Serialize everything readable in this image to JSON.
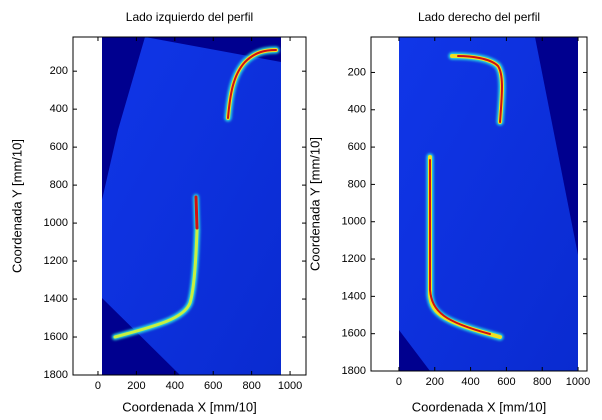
{
  "chart_data": [
    {
      "type": "image",
      "title": "Lado izquierdo del perfil",
      "xlabel": "Coordenada X [mm/10]",
      "ylabel": "Coordenada Y [mm/10]",
      "xlim": [
        -130,
        1083
      ],
      "ylim": [
        20,
        1800
      ],
      "yreverse": true,
      "xticks": [
        0,
        200,
        400,
        600,
        800,
        1000
      ],
      "yticks": [
        200,
        400,
        600,
        800,
        1000,
        1200,
        1400,
        1600,
        1800
      ]
    },
    {
      "type": "image",
      "title": "Lado derecho del perfil",
      "xlabel": "Coordenada X [mm/10]",
      "ylabel": "Coordenada Y [mm/10]",
      "xlim": [
        -156,
        1050
      ],
      "ylim": [
        10,
        1800
      ],
      "yreverse": true,
      "xticks": [
        0,
        200,
        400,
        600,
        800,
        1000
      ],
      "yticks": [
        200,
        400,
        600,
        800,
        1000,
        1200,
        1400,
        1600,
        1800
      ]
    }
  ]
}
